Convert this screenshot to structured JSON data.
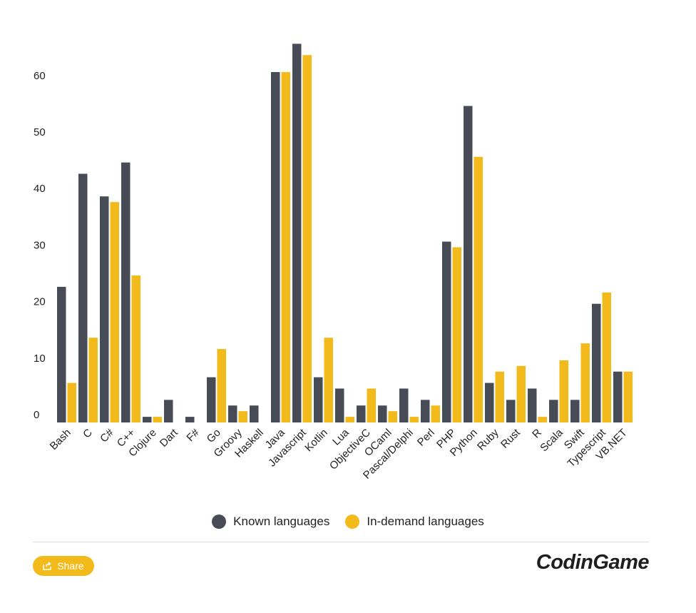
{
  "chart_data": {
    "type": "bar",
    "categories": [
      "Bash",
      "C",
      "C#",
      "C++",
      "Clojure",
      "Dart",
      "F#",
      "Go",
      "Groovy",
      "Haskell",
      "Java",
      "Javascript",
      "Kotlin",
      "Lua",
      "ObjectiveC",
      "OCaml",
      "Pascal/Delphi",
      "Perl",
      "PHP",
      "Python",
      "Ruby",
      "Rust",
      "R",
      "Scala",
      "Swift",
      "Typescript",
      "VB.NET"
    ],
    "series": [
      {
        "name": "Known languages",
        "color": "#474b55",
        "values": [
          24,
          44,
          40,
          46,
          1,
          4,
          1,
          8,
          3,
          3,
          62,
          67,
          8,
          6,
          3,
          3,
          6,
          4,
          32,
          56,
          7,
          4,
          6,
          4,
          4,
          21,
          9
        ]
      },
      {
        "name": "In-demand languages",
        "color": "#f2bb1b",
        "values": [
          7,
          15,
          39,
          26,
          1,
          0,
          0,
          13,
          2,
          0,
          62,
          65,
          15,
          1,
          6,
          2,
          1,
          3,
          31,
          47,
          9,
          10,
          1,
          11,
          14,
          23,
          9
        ]
      }
    ],
    "yticks": [
      0,
      10,
      20,
      30,
      40,
      50,
      60
    ],
    "ylim": [
      0,
      67
    ],
    "grid": false,
    "legend_position": "bottom"
  },
  "legend": {
    "known_label": "Known languages",
    "demand_label": "In-demand languages"
  },
  "footer": {
    "share_label": "Share",
    "brand": "CodinGame"
  }
}
